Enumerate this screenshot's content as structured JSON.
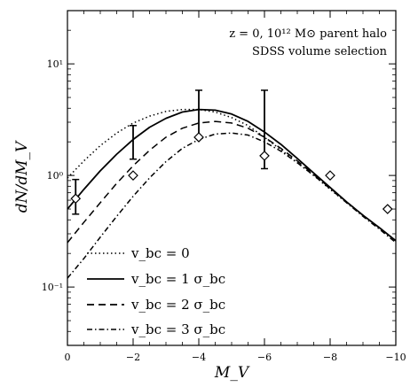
{
  "chart_data": {
    "type": "line",
    "xlabel": "M_V",
    "ylabel": "dN/dM_V",
    "x_axis": {
      "min": 0,
      "max": -10,
      "direction": "reversed",
      "ticks": [
        0,
        -2,
        -4,
        -6,
        -8,
        -10
      ],
      "tick_labels": [
        "0",
        "−2",
        "−4",
        "−6",
        "−8",
        "−10"
      ]
    },
    "y_axis": {
      "scale": "log",
      "min": 0.03,
      "max": 30,
      "ticks": [
        0.1,
        1,
        10
      ],
      "tick_labels": [
        "10⁻¹",
        "10⁰",
        "10¹"
      ]
    },
    "annotations": [
      "z = 0, 10¹² M⊙ parent halo",
      "SDSS volume selection"
    ],
    "legend": {
      "position": "bottom-left"
    },
    "series": [
      {
        "name": "v_bc = 0",
        "style": "dotted",
        "x": [
          0,
          -0.5,
          -1,
          -1.5,
          -2,
          -2.5,
          -3,
          -3.5,
          -4,
          -4.5,
          -5,
          -5.5,
          -6,
          -6.5,
          -7,
          -7.5,
          -8,
          -8.5,
          -9,
          -9.5,
          -10
        ],
        "y": [
          0.95,
          1.35,
          1.85,
          2.4,
          2.95,
          3.4,
          3.75,
          3.9,
          3.9,
          3.7,
          3.3,
          2.8,
          2.2,
          1.7,
          1.3,
          1.0,
          0.75,
          0.57,
          0.44,
          0.34,
          0.26
        ]
      },
      {
        "name": "v_bc = 1 σ_bc",
        "style": "solid",
        "x": [
          0,
          -0.5,
          -1,
          -1.5,
          -2,
          -2.5,
          -3,
          -3.5,
          -4,
          -4.5,
          -5,
          -5.5,
          -6,
          -6.5,
          -7,
          -7.5,
          -8,
          -8.5,
          -9,
          -9.5,
          -10
        ],
        "y": [
          0.5,
          0.75,
          1.1,
          1.55,
          2.1,
          2.7,
          3.25,
          3.7,
          3.9,
          3.85,
          3.55,
          3.05,
          2.45,
          1.9,
          1.42,
          1.05,
          0.78,
          0.58,
          0.44,
          0.34,
          0.26
        ]
      },
      {
        "name": "v_bc = 2 σ_bc",
        "style": "dashed",
        "x": [
          0,
          -0.5,
          -1,
          -1.5,
          -2,
          -2.5,
          -3,
          -3.5,
          -4,
          -4.5,
          -5,
          -5.5,
          -6,
          -6.5,
          -7,
          -7.5,
          -8,
          -8.5,
          -9,
          -9.5,
          -10
        ],
        "y": [
          0.25,
          0.38,
          0.57,
          0.85,
          1.22,
          1.68,
          2.2,
          2.65,
          2.95,
          3.05,
          2.95,
          2.65,
          2.2,
          1.75,
          1.35,
          1.02,
          0.77,
          0.58,
          0.44,
          0.34,
          0.26
        ]
      },
      {
        "name": "v_bc = 3 σ_bc",
        "style": "dashdot",
        "x": [
          0,
          -0.5,
          -1,
          -1.5,
          -2,
          -2.5,
          -3,
          -3.5,
          -4,
          -4.5,
          -5,
          -5.5,
          -6,
          -6.5,
          -7,
          -7.5,
          -8,
          -8.5,
          -9,
          -9.5,
          -10
        ],
        "y": [
          0.12,
          0.18,
          0.28,
          0.43,
          0.65,
          0.95,
          1.33,
          1.75,
          2.1,
          2.35,
          2.4,
          2.3,
          2.0,
          1.65,
          1.3,
          1.0,
          0.76,
          0.57,
          0.43,
          0.33,
          0.25
        ]
      }
    ],
    "observations": {
      "x": [
        -0.25,
        -2,
        -4,
        -6,
        -8,
        -9.75
      ],
      "y": [
        0.62,
        1.0,
        2.2,
        1.5,
        1.0,
        0.5
      ],
      "y_err_low": [
        0.45,
        1.4,
        null,
        1.15,
        null,
        null
      ],
      "y_err_high": [
        0.92,
        2.8,
        5.8,
        5.8,
        null,
        null
      ]
    }
  }
}
